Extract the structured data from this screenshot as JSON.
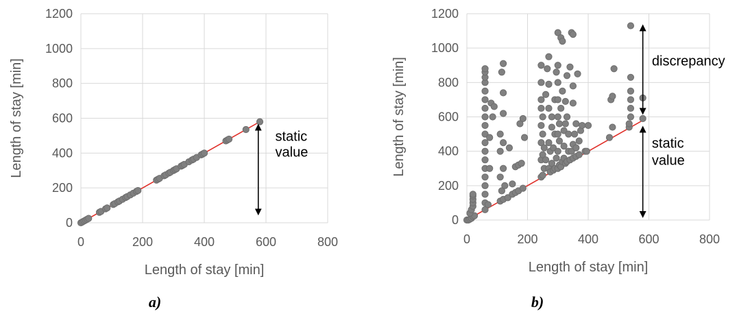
{
  "colors": {
    "point": "#808080",
    "point_edge": "#6e6e6e",
    "line": "#e0302a",
    "grid": "#d9d9d9",
    "arrow": "#000000"
  },
  "chart_data": [
    {
      "type": "scatter",
      "caption": "a)",
      "xlabel": "Length of stay [min]",
      "ylabel": "Length of stay [min]",
      "xlim": [
        0,
        800
      ],
      "ylim": [
        0,
        1200
      ],
      "xticks": [
        "0",
        "200",
        "400",
        "600",
        "800"
      ],
      "yticks": [
        "0",
        "200",
        "400",
        "600",
        "800",
        "1000",
        "1200"
      ],
      "grid": true,
      "reference_line": [
        [
          0,
          0
        ],
        [
          580,
          580
        ]
      ],
      "annotations": [
        {
          "text": "static",
          "x": 630,
          "y": 470
        },
        {
          "text": "value",
          "x": 630,
          "y": 380
        }
      ],
      "arrows": [
        {
          "x": 575,
          "y_from": 560,
          "y_to": 50
        }
      ],
      "points": [
        [
          0,
          0
        ],
        [
          5,
          5
        ],
        [
          10,
          10
        ],
        [
          15,
          15
        ],
        [
          20,
          20
        ],
        [
          25,
          25
        ],
        [
          60,
          60
        ],
        [
          65,
          65
        ],
        [
          80,
          80
        ],
        [
          85,
          85
        ],
        [
          105,
          105
        ],
        [
          110,
          110
        ],
        [
          120,
          120
        ],
        [
          125,
          125
        ],
        [
          135,
          135
        ],
        [
          145,
          145
        ],
        [
          150,
          150
        ],
        [
          160,
          160
        ],
        [
          170,
          170
        ],
        [
          180,
          180
        ],
        [
          185,
          185
        ],
        [
          245,
          245
        ],
        [
          250,
          250
        ],
        [
          255,
          255
        ],
        [
          270,
          270
        ],
        [
          275,
          275
        ],
        [
          285,
          285
        ],
        [
          290,
          290
        ],
        [
          300,
          300
        ],
        [
          305,
          305
        ],
        [
          310,
          310
        ],
        [
          325,
          325
        ],
        [
          330,
          330
        ],
        [
          335,
          335
        ],
        [
          350,
          350
        ],
        [
          360,
          360
        ],
        [
          365,
          365
        ],
        [
          375,
          375
        ],
        [
          390,
          390
        ],
        [
          395,
          395
        ],
        [
          400,
          400
        ],
        [
          470,
          470
        ],
        [
          475,
          475
        ],
        [
          480,
          480
        ],
        [
          535,
          535
        ],
        [
          580,
          580
        ]
      ]
    },
    {
      "type": "scatter",
      "caption": "b)",
      "xlabel": "Length of stay [min]",
      "ylabel": "Length of stay [min]",
      "xlim": [
        0,
        800
      ],
      "ylim": [
        0,
        1200
      ],
      "xticks": [
        "0",
        "200",
        "400",
        "600",
        "800"
      ],
      "yticks": [
        "0",
        "200",
        "400",
        "600",
        "800",
        "1000",
        "1200"
      ],
      "grid": true,
      "reference_line": [
        [
          0,
          0
        ],
        [
          580,
          580
        ]
      ],
      "annotations": [
        {
          "text": "discrepancy",
          "x": 610,
          "y": 900
        },
        {
          "text": "static",
          "x": 610,
          "y": 420
        },
        {
          "text": "value",
          "x": 610,
          "y": 320
        }
      ],
      "arrows": [
        {
          "x": 580,
          "y_from": 620,
          "y_to": 1130
        },
        {
          "x": 580,
          "y_from": 540,
          "y_to": 20
        }
      ],
      "points": [
        [
          0,
          0
        ],
        [
          5,
          0
        ],
        [
          10,
          5
        ],
        [
          15,
          10
        ],
        [
          20,
          20
        ],
        [
          25,
          25
        ],
        [
          10,
          40
        ],
        [
          15,
          60
        ],
        [
          20,
          80
        ],
        [
          20,
          100
        ],
        [
          20,
          120
        ],
        [
          20,
          140
        ],
        [
          20,
          150
        ],
        [
          60,
          60
        ],
        [
          60,
          100
        ],
        [
          60,
          150
        ],
        [
          60,
          200
        ],
        [
          60,
          250
        ],
        [
          60,
          300
        ],
        [
          60,
          350
        ],
        [
          60,
          400
        ],
        [
          60,
          450
        ],
        [
          60,
          500
        ],
        [
          60,
          550
        ],
        [
          60,
          600
        ],
        [
          60,
          650
        ],
        [
          60,
          700
        ],
        [
          60,
          750
        ],
        [
          60,
          800
        ],
        [
          60,
          830
        ],
        [
          60,
          860
        ],
        [
          60,
          880
        ],
        [
          70,
          90
        ],
        [
          75,
          300
        ],
        [
          75,
          480
        ],
        [
          80,
          680
        ],
        [
          85,
          600
        ],
        [
          90,
          660
        ],
        [
          110,
          110
        ],
        [
          110,
          250
        ],
        [
          110,
          400
        ],
        [
          110,
          500
        ],
        [
          115,
          170
        ],
        [
          115,
          860
        ],
        [
          120,
          120
        ],
        [
          120,
          300
        ],
        [
          120,
          450
        ],
        [
          120,
          620
        ],
        [
          120,
          740
        ],
        [
          120,
          910
        ],
        [
          125,
          200
        ],
        [
          135,
          130
        ],
        [
          140,
          420
        ],
        [
          150,
          150
        ],
        [
          150,
          210
        ],
        [
          160,
          160
        ],
        [
          160,
          310
        ],
        [
          170,
          170
        ],
        [
          170,
          320
        ],
        [
          175,
          560
        ],
        [
          180,
          330
        ],
        [
          185,
          185
        ],
        [
          185,
          590
        ],
        [
          190,
          480
        ],
        [
          245,
          250
        ],
        [
          245,
          350
        ],
        [
          245,
          450
        ],
        [
          245,
          550
        ],
        [
          245,
          650
        ],
        [
          245,
          700
        ],
        [
          245,
          800
        ],
        [
          245,
          900
        ],
        [
          250,
          260
        ],
        [
          250,
          380
        ],
        [
          250,
          500
        ],
        [
          250,
          600
        ],
        [
          255,
          300
        ],
        [
          255,
          420
        ],
        [
          260,
          350
        ],
        [
          260,
          730
        ],
        [
          265,
          880
        ],
        [
          270,
          300
        ],
        [
          270,
          450
        ],
        [
          270,
          650
        ],
        [
          270,
          790
        ],
        [
          270,
          950
        ],
        [
          275,
          280
        ],
        [
          275,
          400
        ],
        [
          280,
          330
        ],
        [
          280,
          540
        ],
        [
          280,
          600
        ],
        [
          285,
          290
        ],
        [
          285,
          420
        ],
        [
          290,
          300
        ],
        [
          290,
          500
        ],
        [
          290,
          700
        ],
        [
          295,
          360
        ],
        [
          295,
          860
        ],
        [
          300,
          300
        ],
        [
          300,
          400
        ],
        [
          300,
          500
        ],
        [
          300,
          600
        ],
        [
          300,
          700
        ],
        [
          300,
          800
        ],
        [
          300,
          900
        ],
        [
          300,
          1090
        ],
        [
          305,
          320
        ],
        [
          305,
          460
        ],
        [
          305,
          560
        ],
        [
          310,
          310
        ],
        [
          310,
          650
        ],
        [
          310,
          1060
        ],
        [
          315,
          340
        ],
        [
          315,
          750
        ],
        [
          315,
          1040
        ],
        [
          320,
          360
        ],
        [
          320,
          430
        ],
        [
          320,
          520
        ],
        [
          325,
          330
        ],
        [
          325,
          560
        ],
        [
          325,
          690
        ],
        [
          330,
          340
        ],
        [
          330,
          600
        ],
        [
          330,
          840
        ],
        [
          335,
          400
        ],
        [
          335,
          500
        ],
        [
          340,
          350
        ],
        [
          340,
          890
        ],
        [
          345,
          400
        ],
        [
          345,
          1090
        ],
        [
          350,
          360
        ],
        [
          350,
          440
        ],
        [
          350,
          680
        ],
        [
          350,
          780
        ],
        [
          350,
          1080
        ],
        [
          355,
          500
        ],
        [
          360,
          370
        ],
        [
          360,
          420
        ],
        [
          360,
          560
        ],
        [
          365,
          850
        ],
        [
          370,
          380
        ],
        [
          370,
          460
        ],
        [
          375,
          520
        ],
        [
          380,
          550
        ],
        [
          390,
          400
        ],
        [
          395,
          400
        ],
        [
          400,
          550
        ],
        [
          470,
          480
        ],
        [
          475,
          700
        ],
        [
          480,
          720
        ],
        [
          480,
          540
        ],
        [
          485,
          880
        ],
        [
          535,
          540
        ],
        [
          535,
          560
        ],
        [
          540,
          600
        ],
        [
          540,
          650
        ],
        [
          540,
          700
        ],
        [
          540,
          750
        ],
        [
          540,
          830
        ],
        [
          540,
          1130
        ],
        [
          580,
          590
        ],
        [
          580,
          710
        ]
      ]
    }
  ]
}
